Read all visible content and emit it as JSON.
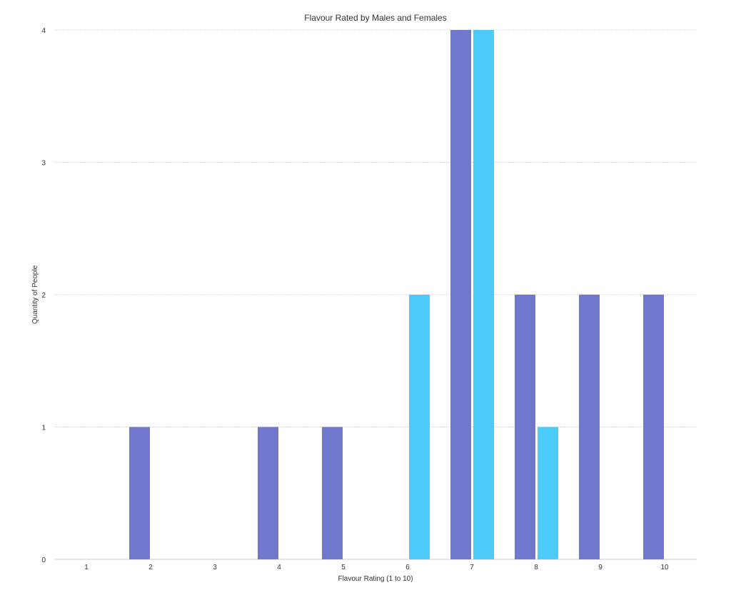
{
  "chart_data": {
    "type": "bar",
    "title": "Flavour Rated by Males and Females",
    "xlabel": "Flavour Rating (1 to 10)",
    "ylabel": "Quantity of People",
    "categories": [
      "1",
      "2",
      "3",
      "4",
      "5",
      "6",
      "7",
      "8",
      "9",
      "10"
    ],
    "ylim": [
      0,
      4
    ],
    "yticks": [
      "0",
      "1",
      "2",
      "3",
      "4"
    ],
    "grid": true,
    "series": [
      {
        "id": "males",
        "color": "#6f78cc",
        "values": [
          0,
          1,
          0,
          1,
          1,
          0,
          4,
          2,
          2,
          2
        ]
      },
      {
        "id": "females",
        "color": "#4ccbfb",
        "values": [
          0,
          0,
          0,
          0,
          0,
          2,
          4,
          1,
          0,
          0
        ]
      }
    ]
  }
}
